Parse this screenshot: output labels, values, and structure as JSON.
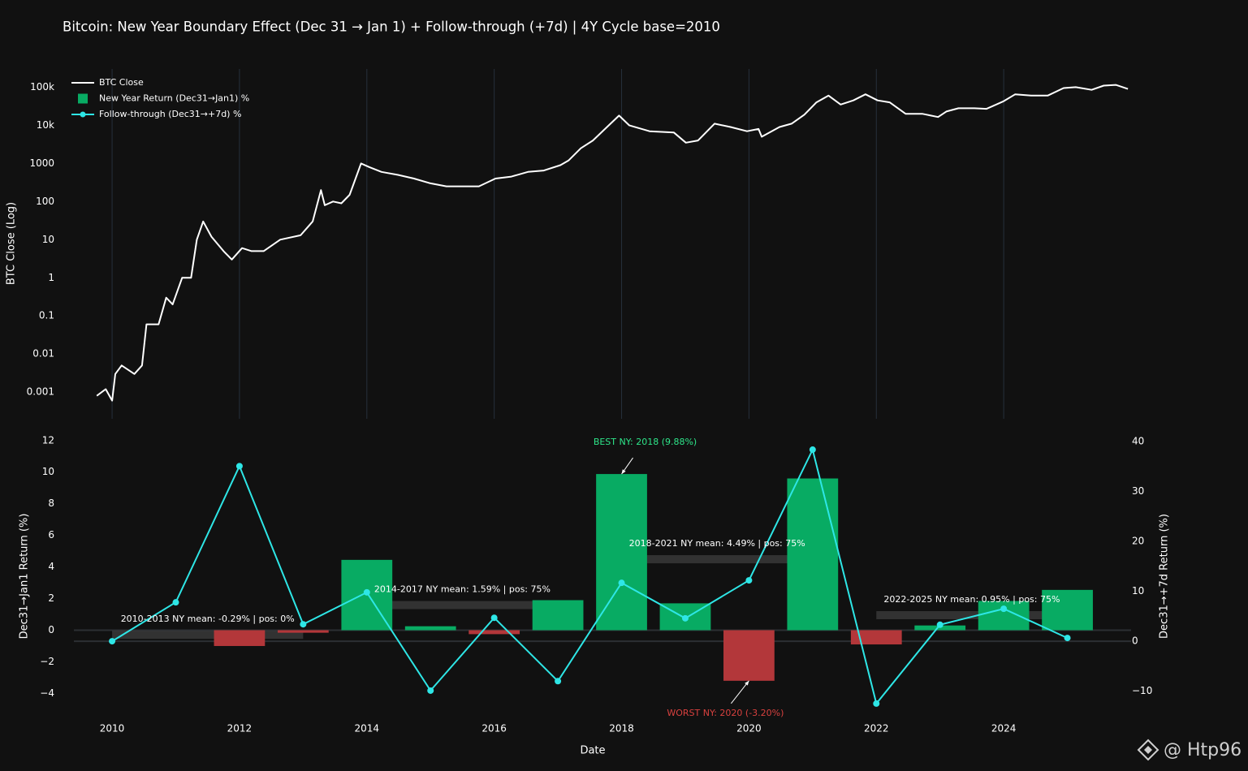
{
  "chart_data": [
    {
      "type": "line",
      "title": "Bitcoin: New Year Boundary Effect (Dec 31 → Jan 1) + Follow-through (+7d) | 4Y Cycle base=2010",
      "ylabel": "BTC Close (Log)",
      "log_scale": true,
      "legend": "top-left",
      "grid": true,
      "x": [
        2009.76,
        2009.9,
        2010.0,
        2010.05,
        2010.15,
        2010.35,
        2010.47,
        2010.54,
        2010.73,
        2010.85,
        2010.95,
        2011.1,
        2011.24,
        2011.33,
        2011.43,
        2011.56,
        2011.75,
        2011.88,
        2012.04,
        2012.19,
        2012.38,
        2012.64,
        2012.96,
        2013.15,
        2013.28,
        2013.34,
        2013.47,
        2013.6,
        2013.73,
        2013.91,
        2014.04,
        2014.23,
        2014.49,
        2014.74,
        2015.0,
        2015.25,
        2015.5,
        2015.76,
        2016.02,
        2016.27,
        2016.53,
        2016.78,
        2017.04,
        2017.17,
        2017.36,
        2017.55,
        2017.74,
        2017.96,
        2018.12,
        2018.44,
        2018.82,
        2019.01,
        2019.2,
        2019.46,
        2019.71,
        2019.97,
        2020.15,
        2020.2,
        2020.48,
        2020.67,
        2020.87,
        2021.06,
        2021.25,
        2021.44,
        2021.64,
        2021.83,
        2022.02,
        2022.21,
        2022.46,
        2022.72,
        2022.97,
        2023.1,
        2023.29,
        2023.54,
        2023.73,
        2023.99,
        2024.18,
        2024.43,
        2024.69,
        2024.94,
        2025.13,
        2025.38,
        2025.57,
        2025.76,
        2025.95
      ],
      "series": [
        {
          "name": "BTC Close",
          "color": "#ffffff",
          "values": [
            0.0008,
            0.0012,
            0.0006,
            0.003,
            0.005,
            0.003,
            0.005,
            0.06,
            0.06,
            0.3,
            0.2,
            1,
            1,
            10,
            30,
            12,
            5,
            3,
            6,
            5,
            5,
            10,
            13,
            30,
            200,
            80,
            100,
            90,
            150,
            1000,
            800,
            600,
            500,
            400,
            300,
            250,
            250,
            250,
            400,
            450,
            600,
            650,
            900,
            1200,
            2500,
            4000,
            8000,
            18000,
            10000,
            7000,
            6500,
            3500,
            4000,
            11000,
            9000,
            7000,
            8000,
            5000,
            9000,
            11000,
            19000,
            40000,
            60000,
            35000,
            45000,
            65000,
            45000,
            40000,
            20000,
            20000,
            16500,
            23000,
            28000,
            28000,
            27000,
            42000,
            65000,
            60000,
            60000,
            95000,
            100000,
            85000,
            110000,
            115000,
            90000
          ]
        }
      ],
      "xlim": [
        2009.4,
        2026
      ],
      "xticks": [
        2010,
        2012,
        2014,
        2016,
        2018,
        2020,
        2022,
        2024
      ],
      "ylim": [
        0.0002,
        300000
      ],
      "yticks": [
        0.001,
        0.01,
        0.1,
        1,
        10,
        100,
        1000,
        {
          "value": 10000,
          "label": "10k"
        },
        {
          "value": 100000,
          "label": "100k"
        }
      ]
    },
    {
      "type": "bar",
      "xlabel": "Date",
      "ylabel": "Dec31→Jan1 Return (%)",
      "y2label": "Dec31→+7d Return (%)",
      "x": [
        2010,
        2011,
        2012,
        2013,
        2014,
        2015,
        2016,
        2017,
        2018,
        2019,
        2020,
        2021,
        2022,
        2023,
        2024,
        2025
      ],
      "series": [
        {
          "name": "New Year Return (Dec31→Jan1) %",
          "type": "bar",
          "color": "#08ab63",
          "negative_color": "#b3373a",
          "values": [
            0,
            0,
            -1.0,
            -0.16,
            4.45,
            0.25,
            -0.25,
            1.9,
            9.88,
            1.7,
            -3.2,
            9.6,
            -0.9,
            0.3,
            1.85,
            2.55
          ]
        },
        {
          "name": "Follow-through (Dec31→+7d) %",
          "type": "line",
          "axis": "y2",
          "color": "#2ee6e6",
          "values": [
            0,
            7.8,
            35.1,
            3.4,
            9.8,
            -9.9,
            4.7,
            -8.0,
            11.7,
            4.6,
            12.2,
            38.4,
            -12.5,
            3.3,
            6.5,
            0.65
          ]
        }
      ],
      "xlim": [
        2009.4,
        2026
      ],
      "xticks": [
        2010,
        2012,
        2014,
        2016,
        2018,
        2020,
        2022,
        2024
      ],
      "ylim": [
        -4.8,
        12.4
      ],
      "yticks": [
        {
          "value": -4,
          "label": "−4"
        },
        {
          "value": -2,
          "label": "−2"
        },
        0,
        2,
        4,
        6,
        8,
        10,
        12
      ],
      "y2lim": [
        -13,
        41.5
      ],
      "y2ticks": [
        {
          "value": -10,
          "label": "−10"
        },
        0,
        10,
        20,
        30,
        40
      ],
      "cycles": [
        {
          "start": 2010,
          "end": 2013,
          "mean": -0.29,
          "label": "2010-2013 NY mean: -0.29% | pos: 0%"
        },
        {
          "start": 2014,
          "end": 2017,
          "mean": 1.59,
          "label": "2014-2017 NY mean: 1.59% | pos: 75%"
        },
        {
          "start": 2018,
          "end": 2021,
          "mean": 4.49,
          "label": "2018-2021 NY mean: 4.49% | pos: 75%"
        },
        {
          "start": 2022,
          "end": 2025,
          "mean": 0.95,
          "label": "2022-2025 NY mean: 0.95% | pos: 75%"
        }
      ],
      "annotations": [
        {
          "text": "BEST NY: 2018 (9.88%)",
          "x": 2018,
          "y": 9.88,
          "color": "#2ee68a"
        },
        {
          "text": "WORST NY: 2020 (-3.20%)",
          "x": 2020,
          "y": -3.2,
          "color": "#d9413f"
        }
      ]
    }
  ],
  "watermark": "@ Htp96"
}
